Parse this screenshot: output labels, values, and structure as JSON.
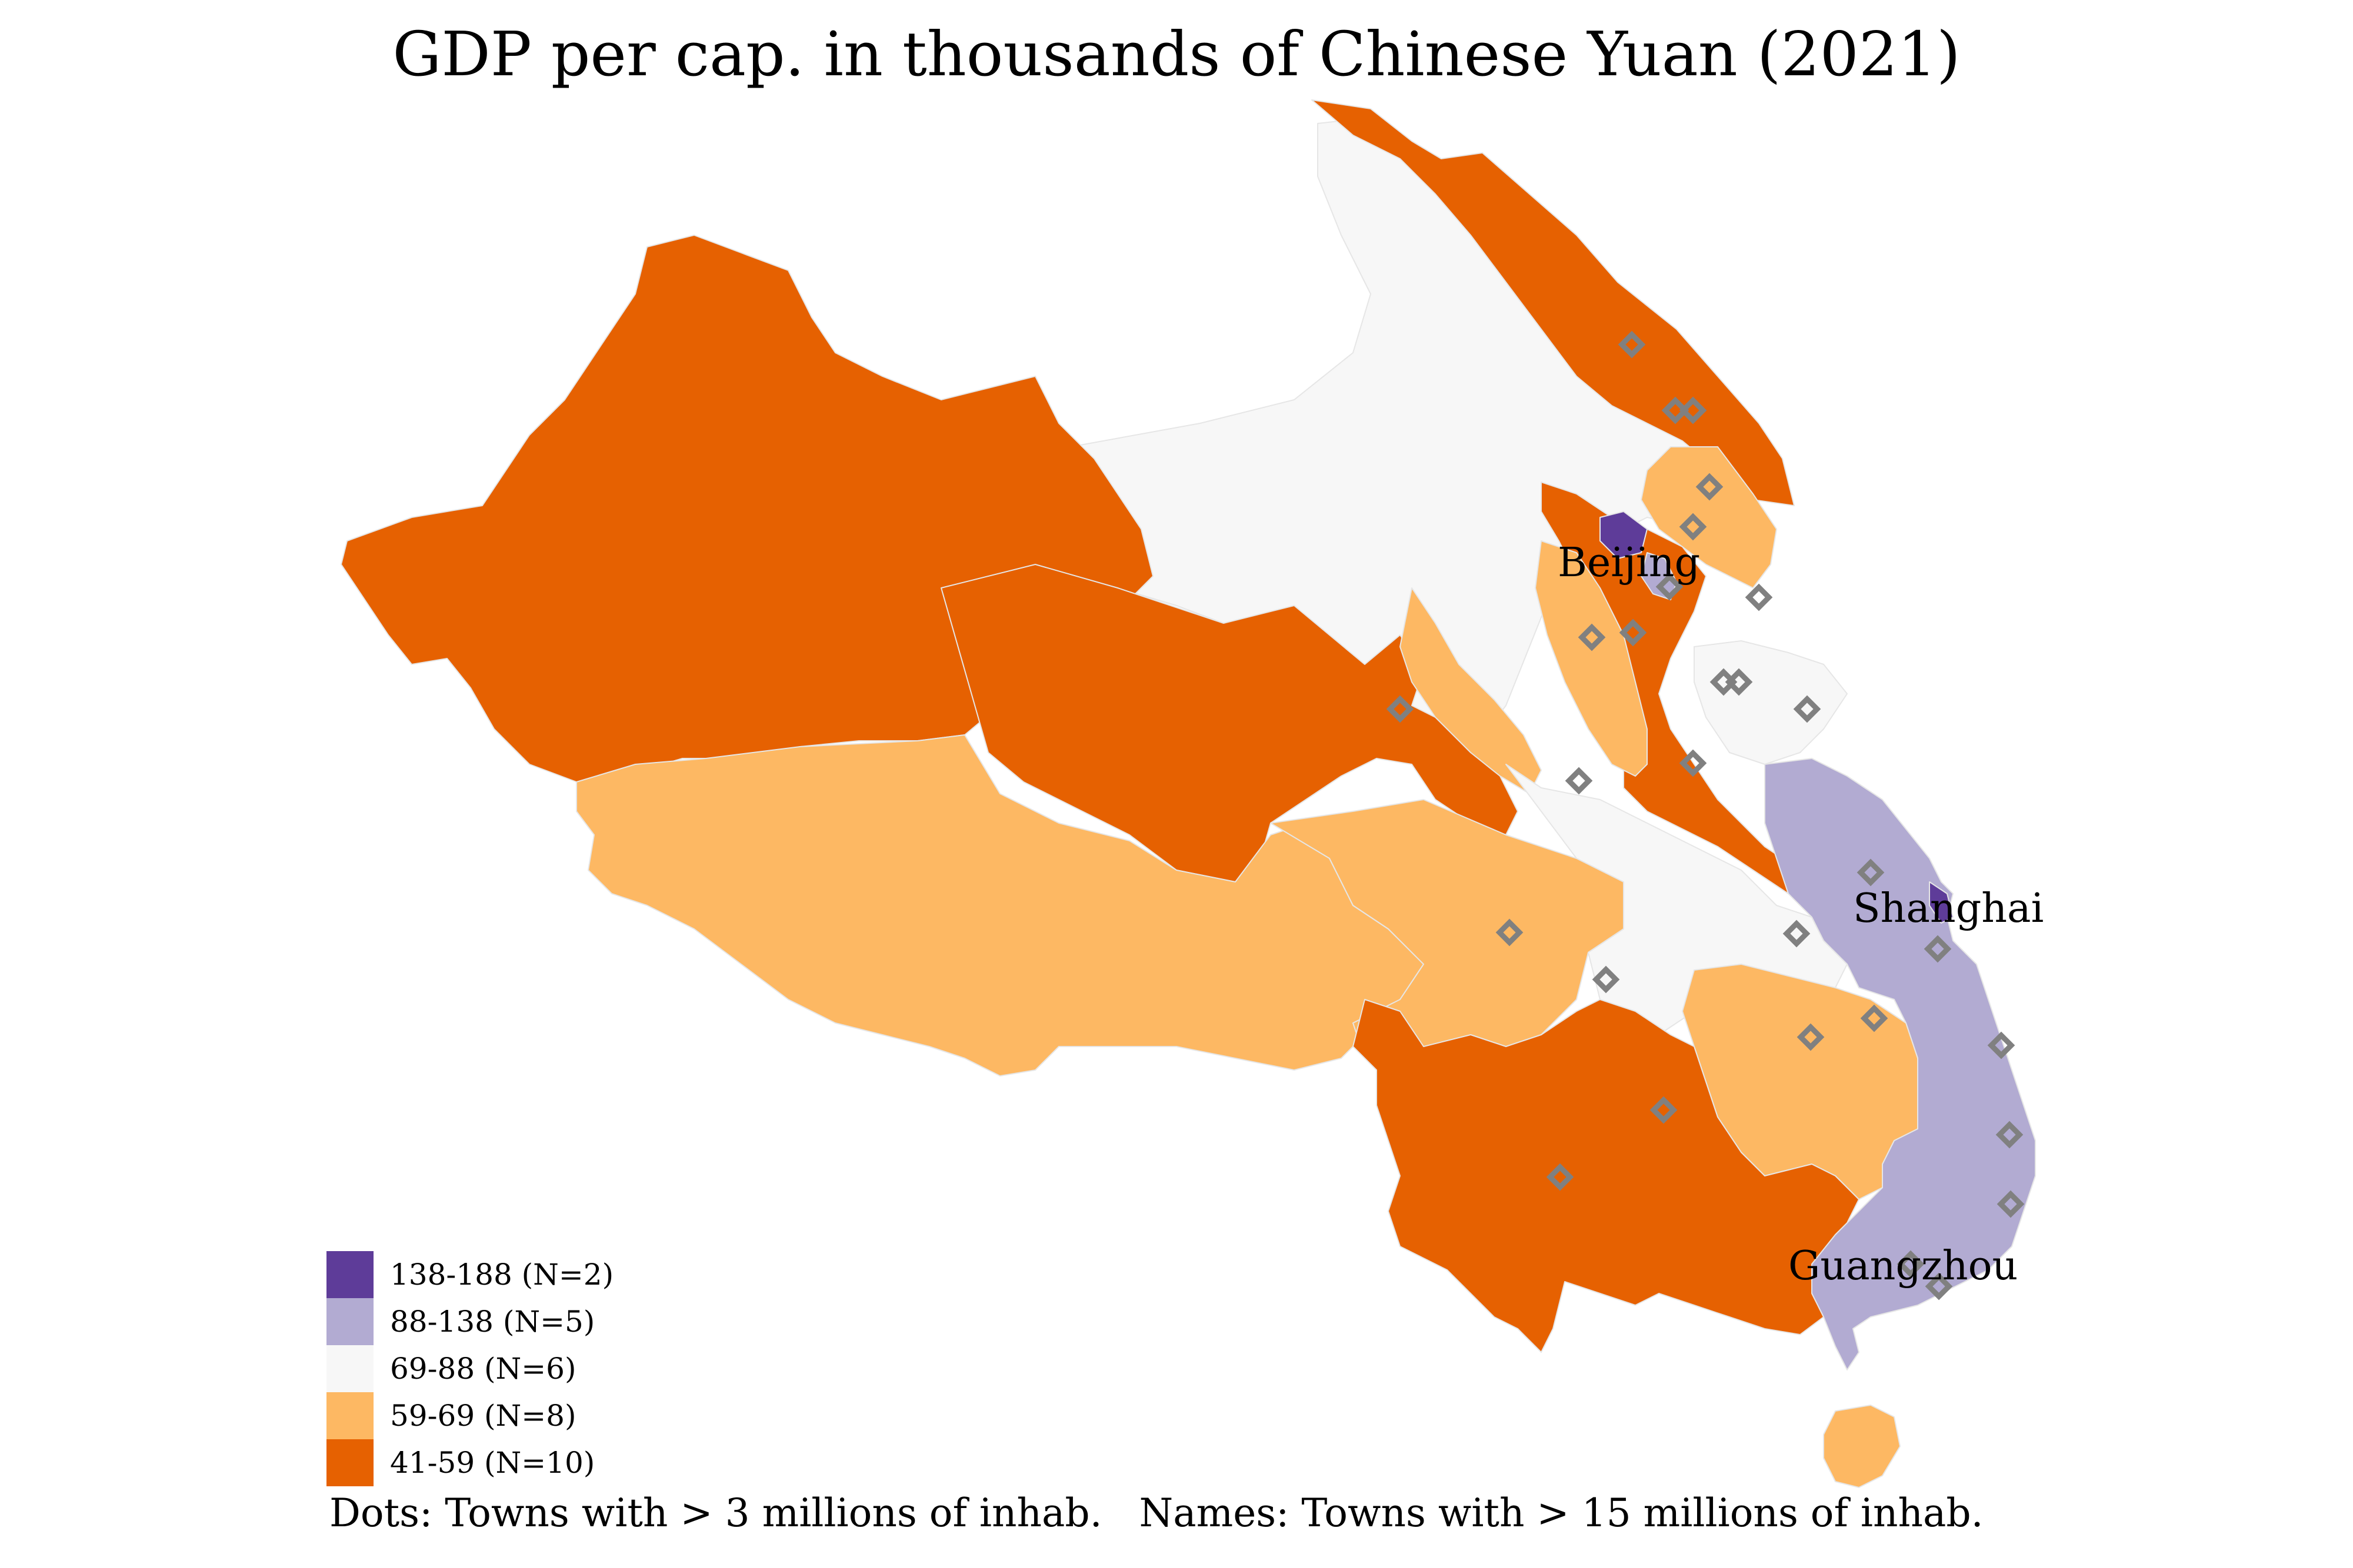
{
  "title": "GDP per cap. in thousands of Chinese Yuan (2021)",
  "colors": {
    "bin_138_188": "#5e3c99",
    "bin_88_138": "#b2abd2",
    "bin_69_88": "#f7f7f7",
    "bin_59_69": "#fdb863",
    "bin_41_59": "#e66101",
    "town_dot": "#808080"
  },
  "legend": [
    {
      "label": "138-188 (N=2)",
      "color": "#5e3c99"
    },
    {
      "label": "88-138 (N=5)",
      "color": "#b2abd2"
    },
    {
      "label": "69-88 (N=6)",
      "color": "#f7f7f7"
    },
    {
      "label": "59-69 (N=8)",
      "color": "#fdb863"
    },
    {
      "label": "41-59 (N=10)",
      "color": "#e66101"
    }
  ],
  "city_labels": {
    "beijing": "Beijing",
    "shanghai": "Shanghai",
    "guangzhou": "Guangzhou"
  },
  "footnote": {
    "dots": "Dots: Towns with > 3 millions of inhab.",
    "names": "Names: Towns with > 15 millions of inhab."
  },
  "town_dot_icon": "diamond-outline"
}
